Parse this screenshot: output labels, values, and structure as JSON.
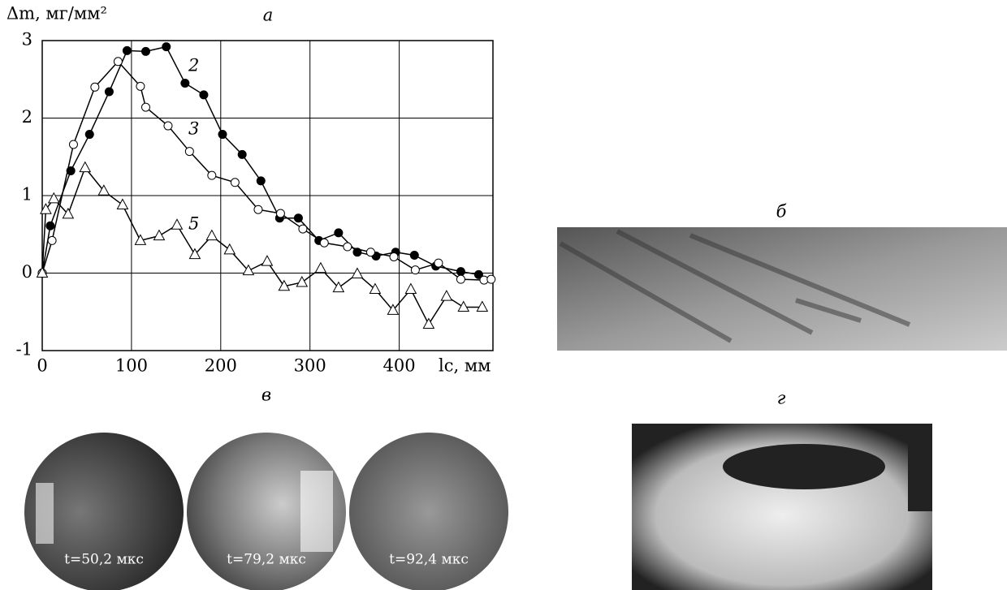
{
  "chart_data": {
    "type": "line",
    "title": "а",
    "y_label": "Δm, мг/мм²",
    "x_label": "lс, мм",
    "xlim": [
      0,
      505
    ],
    "ylim": [
      -1,
      3
    ],
    "xticks": [
      0,
      100,
      200,
      300,
      400
    ],
    "yticks": [
      -1,
      0,
      1,
      2,
      3
    ],
    "grid": true,
    "series": [
      {
        "name": "2",
        "color": "#000000",
        "marker": "filled-circle",
        "x": [
          0,
          9,
          32,
          53,
          75,
          95,
          116,
          139,
          160,
          181,
          202,
          224,
          245,
          266,
          287,
          310,
          332,
          353,
          374,
          396,
          417,
          441,
          469,
          489
        ],
        "values": [
          0,
          0.61,
          1.32,
          1.79,
          2.34,
          2.87,
          2.86,
          2.92,
          2.45,
          2.3,
          1.79,
          1.53,
          1.19,
          0.71,
          0.71,
          0.42,
          0.52,
          0.27,
          0.22,
          0.27,
          0.23,
          0.09,
          0.02,
          -0.02
        ]
      },
      {
        "name": "3",
        "color": "#000000",
        "marker": "open-circle",
        "x": [
          0,
          11,
          35,
          59,
          85,
          110,
          116,
          141,
          165,
          190,
          216,
          242,
          267,
          292,
          316,
          342,
          368,
          394,
          418,
          444,
          469,
          495,
          503
        ],
        "values": [
          0,
          0.42,
          1.66,
          2.4,
          2.73,
          2.41,
          2.14,
          1.9,
          1.57,
          1.26,
          1.17,
          0.82,
          0.77,
          0.57,
          0.39,
          0.34,
          0.27,
          0.21,
          0.04,
          0.13,
          -0.08,
          -0.09,
          -0.08
        ]
      },
      {
        "name": "5",
        "color": "#000000",
        "marker": "triangle",
        "x": [
          0,
          4,
          13,
          29,
          48,
          69,
          90,
          110,
          131,
          151,
          171,
          190,
          210,
          231,
          252,
          271,
          291,
          312,
          332,
          353,
          373,
          393,
          413,
          433,
          453,
          472,
          493
        ],
        "values": [
          0,
          0.82,
          0.96,
          0.76,
          1.36,
          1.06,
          0.88,
          0.42,
          0.48,
          0.62,
          0.24,
          0.48,
          0.3,
          0.03,
          0.15,
          -0.17,
          -0.12,
          0.06,
          -0.19,
          -0.01,
          -0.21,
          -0.48,
          -0.21,
          -0.66,
          -0.3,
          -0.44,
          -0.44
        ]
      }
    ]
  },
  "panels": {
    "b": {
      "label": "б"
    },
    "v": {
      "label": "в",
      "captions": [
        "t=50,2 мкс",
        "t=79,2 мкс",
        "t=92,4 мкс"
      ]
    },
    "g": {
      "label": "г"
    }
  }
}
